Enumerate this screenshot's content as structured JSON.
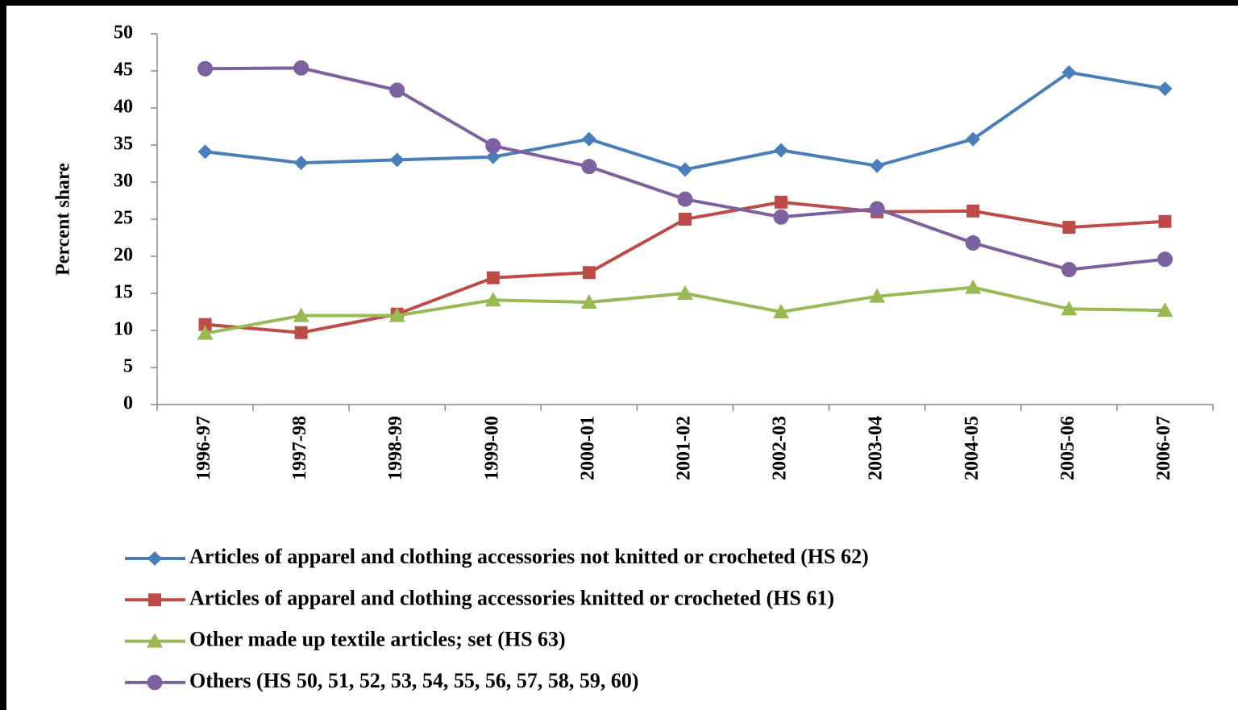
{
  "chart_data": {
    "type": "line",
    "y_label": "Percent share",
    "categories": [
      "1996-97",
      "1997-98",
      "1998-99",
      "1999-00",
      "2000-01",
      "2001-02",
      "2002-03",
      "2003-04",
      "2004-05",
      "2005-06",
      "2006-07"
    ],
    "series": [
      {
        "name": "Articles of apparel and clothing accessories not knitted or crocheted (HS 62)",
        "color": "#4a7ebb",
        "marker": "diamond",
        "values": [
          34.1,
          32.6,
          33.0,
          33.4,
          35.8,
          31.7,
          34.3,
          32.2,
          35.8,
          44.8,
          42.6
        ]
      },
      {
        "name": "Articles of apparel and clothing accessories knitted or crocheted (HS 61)",
        "color": "#be4b48",
        "marker": "square",
        "values": [
          10.8,
          9.7,
          12.2,
          17.1,
          17.8,
          25.0,
          27.3,
          26.0,
          26.1,
          23.9,
          24.7
        ]
      },
      {
        "name": "Other made up textile articles; set (HS 63)",
        "color": "#98b954",
        "marker": "triangle",
        "values": [
          9.6,
          12.0,
          12.0,
          14.1,
          13.8,
          15.0,
          12.5,
          14.6,
          15.8,
          12.9,
          12.7
        ]
      },
      {
        "name": "Others (HS 50, 51, 52, 53, 54, 55, 56, 57, 58, 59, 60)",
        "color": "#7d60a0",
        "marker": "circle",
        "values": [
          45.3,
          45.4,
          42.4,
          34.9,
          32.1,
          27.7,
          25.3,
          26.4,
          21.8,
          18.2,
          19.6
        ]
      }
    ],
    "ylim": [
      0,
      50
    ],
    "yticks": [
      0,
      5,
      10,
      15,
      20,
      25,
      30,
      35,
      40,
      45,
      50
    ]
  }
}
